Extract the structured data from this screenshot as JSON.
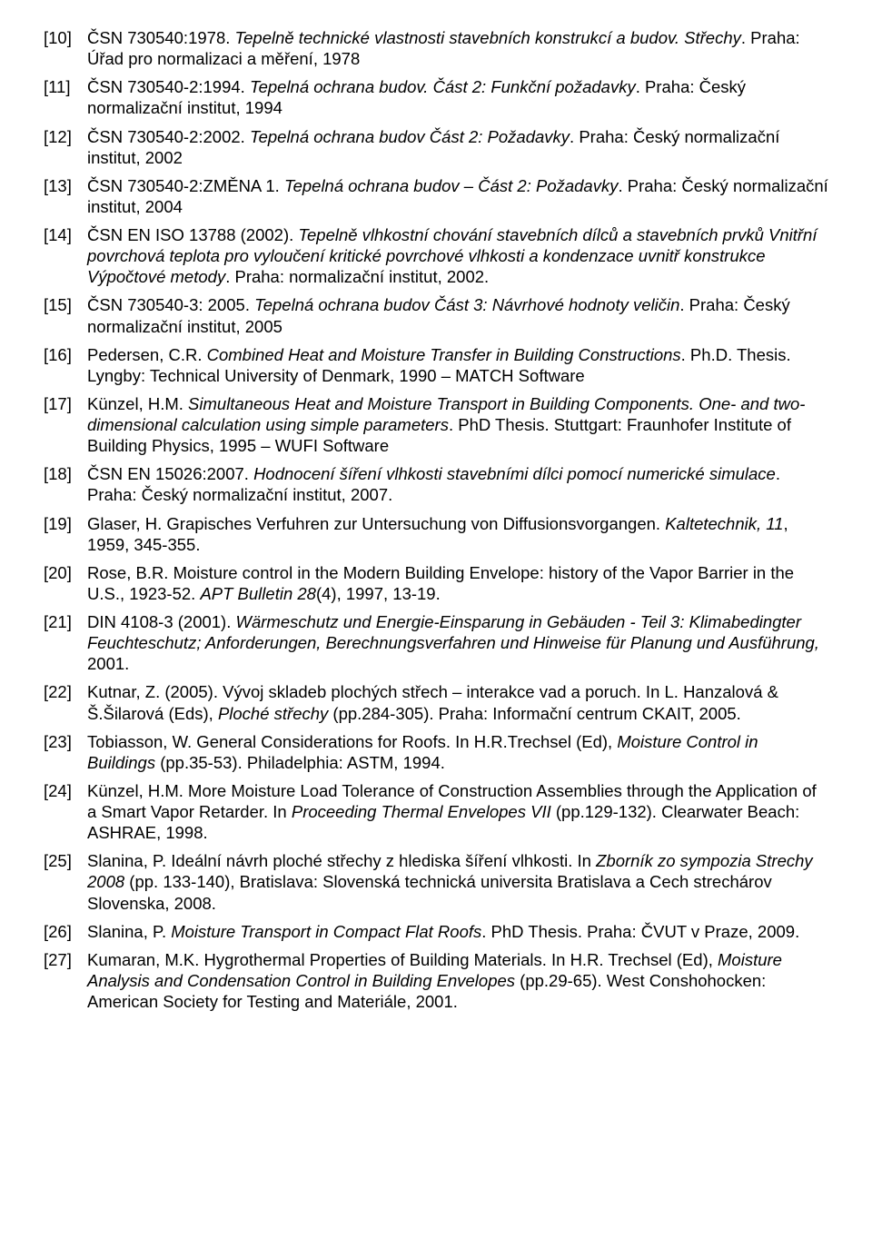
{
  "references": [
    {
      "num": "[10]",
      "segments": [
        {
          "t": "ČSN 730540:1978. ",
          "i": false
        },
        {
          "t": "Tepelně technické vlastnosti stavebních konstrukcí a budov. Střechy",
          "i": true
        },
        {
          "t": ". Praha: Úřad pro normalizaci a měření, 1978",
          "i": false
        }
      ]
    },
    {
      "num": "[11]",
      "segments": [
        {
          "t": "ČSN 730540-2:1994. ",
          "i": false
        },
        {
          "t": "Tepelná ochrana budov. Část 2: Funkční požadavky",
          "i": true
        },
        {
          "t": ". Praha: Český normalizační institut, 1994",
          "i": false
        }
      ]
    },
    {
      "num": "[12]",
      "segments": [
        {
          "t": "ČSN 730540-2:2002. ",
          "i": false
        },
        {
          "t": "Tepelná ochrana budov Část 2: Požadavky",
          "i": true
        },
        {
          "t": ". Praha: Český normalizační institut, 2002",
          "i": false
        }
      ]
    },
    {
      "num": "[13]",
      "segments": [
        {
          "t": "ČSN 730540-2:ZMĚNA 1. ",
          "i": false
        },
        {
          "t": "Tepelná ochrana budov – Část 2: Požadavky",
          "i": true
        },
        {
          "t": ". Praha: Český normalizační institut, 2004",
          "i": false
        }
      ]
    },
    {
      "num": "[14]",
      "segments": [
        {
          "t": "ČSN EN ISO 13788 (2002). ",
          "i": false
        },
        {
          "t": "Tepelně vlhkostní chování stavebních dílců a stavebních prvků Vnitřní povrchová teplota pro vyloučení kritické povrchové vlhkosti a kondenzace uvnitř konstrukce Výpočtové metody",
          "i": true
        },
        {
          "t": ". Praha: normalizační institut, 2002.",
          "i": false
        }
      ]
    },
    {
      "num": "[15]",
      "segments": [
        {
          "t": "ČSN 730540-3: 2005. ",
          "i": false
        },
        {
          "t": "Tepelná ochrana budov Část 3: Návrhové hodnoty veličin",
          "i": true
        },
        {
          "t": ". Praha: Český normalizační institut, 2005",
          "i": false
        }
      ]
    },
    {
      "num": "[16]",
      "segments": [
        {
          "t": "Pedersen, C.R. ",
          "i": false
        },
        {
          "t": "Combined Heat and Moisture Transfer in Building Constructions",
          "i": true
        },
        {
          "t": ". Ph.D. Thesis. Lyngby: Technical University of Denmark, 1990 – MATCH Software",
          "i": false
        }
      ]
    },
    {
      "num": "[17]",
      "segments": [
        {
          "t": "Künzel, H.M. ",
          "i": false
        },
        {
          "t": "Simultaneous Heat and Moisture Transport in Building Components. One- and two-dimensional calculation using simple parameters",
          "i": true
        },
        {
          "t": ". PhD Thesis. Stuttgart: Fraunhofer Institute of Building Physics, 1995 – WUFI Software",
          "i": false
        }
      ]
    },
    {
      "num": "[18]",
      "segments": [
        {
          "t": "ČSN EN 15026:2007. ",
          "i": false
        },
        {
          "t": "Hodnocení šíření vlhkosti stavebními dílci pomocí numerické simulace",
          "i": true
        },
        {
          "t": ". Praha: Český normalizační institut, 2007.",
          "i": false
        }
      ]
    },
    {
      "num": "[19]",
      "segments": [
        {
          "t": "Glaser, H. Grapisches Verfuhren zur Untersuchung von Diffusionsvorgangen. ",
          "i": false
        },
        {
          "t": "Kaltetechnik, 11",
          "i": true
        },
        {
          "t": ", 1959, 345-355.",
          "i": false
        }
      ]
    },
    {
      "num": "[20]",
      "segments": [
        {
          "t": "Rose, B.R. Moisture control in the Modern Building Envelope: history of the Vapor Barrier in the U.S., 1923-52. ",
          "i": false
        },
        {
          "t": "APT Bulletin 28",
          "i": true
        },
        {
          "t": "(4), 1997, 13-19.",
          "i": false
        }
      ]
    },
    {
      "num": "[21]",
      "segments": [
        {
          "t": "DIN 4108-3 (2001). ",
          "i": false
        },
        {
          "t": "Wärmeschutz und Energie-Einsparung in Gebäuden - Teil 3: Klimabedingter Feuchteschutz; Anforderungen, Berechnungsverfahren und Hinweise für Planung und Ausführung,",
          "i": true
        },
        {
          "t": " 2001.",
          "i": false
        }
      ]
    },
    {
      "num": "[22]",
      "segments": [
        {
          "t": "Kutnar, Z. (2005). Vývoj skladeb plochých střech – interakce vad a poruch. In L. Hanzalová & Š.Šilarová (Eds), ",
          "i": false
        },
        {
          "t": "Ploché střechy",
          "i": true
        },
        {
          "t": " (pp.284-305). Praha: Informační centrum CKAIT, 2005.",
          "i": false
        }
      ]
    },
    {
      "num": "[23]",
      "segments": [
        {
          "t": "Tobiasson, W. General Considerations for Roofs. In H.R.Trechsel (Ed), ",
          "i": false
        },
        {
          "t": "Moisture Control in Buildings",
          "i": true
        },
        {
          "t": " (pp.35-53). Philadelphia: ASTM, 1994.",
          "i": false
        }
      ]
    },
    {
      "num": "[24]",
      "segments": [
        {
          "t": "Künzel, H.M. More Moisture Load Tolerance of Construction Assemblies through the Application of a Smart Vapor Retarder. In ",
          "i": false
        },
        {
          "t": "Proceeding Thermal Envelopes VII",
          "i": true
        },
        {
          "t": " (pp.129-132). Clearwater Beach: ASHRAE, 1998.",
          "i": false
        }
      ]
    },
    {
      "num": "[25]",
      "segments": [
        {
          "t": "Slanina, P. Ideální návrh ploché střechy z hlediska šíření vlhkosti. In ",
          "i": false
        },
        {
          "t": "Zborník zo sympozia Strechy 2008",
          "i": true
        },
        {
          "t": " (pp. 133-140), Bratislava: Slovenská technická universita Bratislava a Cech strechárov Slovenska, 2008.",
          "i": false
        }
      ]
    },
    {
      "num": "[26]",
      "segments": [
        {
          "t": "Slanina, P. ",
          "i": false
        },
        {
          "t": "Moisture Transport in Compact Flat Roofs",
          "i": true
        },
        {
          "t": ". PhD Thesis. Praha: ČVUT v Praze, 2009.",
          "i": false
        }
      ]
    },
    {
      "num": "[27]",
      "segments": [
        {
          "t": "Kumaran, M.K. Hygrothermal Properties of Building Materials. In H.R. Trechsel (Ed), ",
          "i": false
        },
        {
          "t": "Moisture Analysis and Condensation Control in Building Envelopes",
          "i": true
        },
        {
          "t": " (pp.29-65). West Conshohocken: American Society for Testing and Materiále, 2001.",
          "i": false
        }
      ]
    }
  ]
}
